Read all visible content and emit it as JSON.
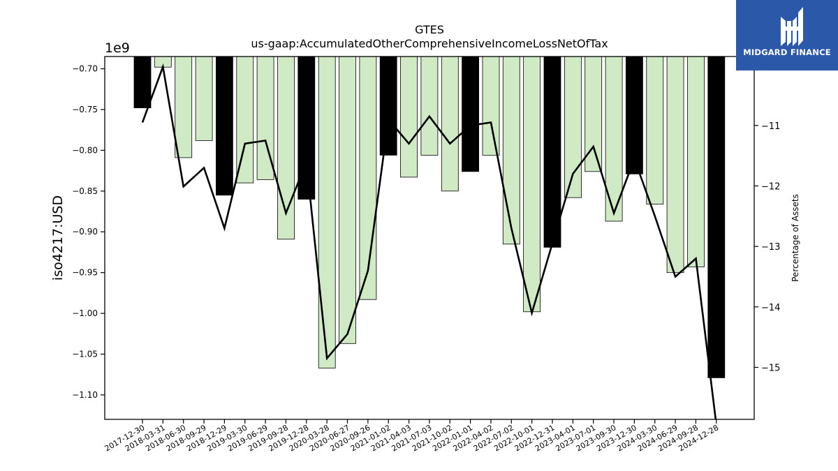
{
  "chart_data": {
    "type": "bar",
    "title": "GTES",
    "subtitle": "us-gaap:AccumulatedOtherComprehensiveIncomeLossNetOfTax",
    "ylabel": "iso4217:USD",
    "y2label": "Percentage of Assets",
    "y_offset_label": "1e9",
    "ylim": [
      -1.13,
      -0.685
    ],
    "y2lim": [
      -15.86,
      -9.86
    ],
    "yticks": [
      "−0.70",
      "−0.75",
      "−0.80",
      "−0.85",
      "−0.90",
      "−0.95",
      "−1.00",
      "−1.05",
      "−1.10"
    ],
    "y2ticks": [
      "−11",
      "−12",
      "−13",
      "−14",
      "−15"
    ],
    "categories": [
      "2017-12-30",
      "2018-03-31",
      "2018-06-30",
      "2018-09-29",
      "2018-12-29",
      "2019-03-30",
      "2019-06-29",
      "2019-09-28",
      "2019-12-28",
      "2020-03-28",
      "2020-06-27",
      "2020-09-26",
      "2021-01-02",
      "2021-04-03",
      "2021-07-03",
      "2021-10-02",
      "2022-01-01",
      "2022-04-02",
      "2022-07-02",
      "2022-10-01",
      "2022-12-31",
      "2023-04-01",
      "2023-07-01",
      "2023-09-30",
      "2023-12-30",
      "2024-03-30",
      "2024-06-29",
      "2024-09-28",
      "2024-12-28"
    ],
    "values": [
      -0.748,
      -0.698,
      -0.809,
      -0.788,
      -0.855,
      -0.84,
      -0.836,
      -0.909,
      -0.86,
      -1.067,
      -1.037,
      -0.983,
      -0.806,
      -0.833,
      -0.806,
      -0.85,
      -0.826,
      -0.806,
      -0.915,
      -0.998,
      -0.919,
      -0.858,
      -0.826,
      -0.887,
      -0.829,
      -0.866,
      -0.95,
      -0.943,
      -1.079
    ],
    "fiscal_year_end": [
      true,
      false,
      false,
      false,
      true,
      false,
      false,
      false,
      true,
      false,
      false,
      false,
      true,
      false,
      false,
      false,
      true,
      false,
      false,
      false,
      true,
      false,
      false,
      false,
      true,
      false,
      false,
      false,
      true
    ],
    "line_series": {
      "name": "Percentage of Assets",
      "values": [
        -10.95,
        -10.03,
        -12.01,
        -11.7,
        -12.7,
        -11.3,
        -11.25,
        -12.45,
        -11.6,
        -14.85,
        -14.45,
        -13.4,
        -10.9,
        -11.3,
        -10.85,
        -11.3,
        -11.0,
        -10.95,
        -12.7,
        -14.1,
        -12.95,
        -11.8,
        -11.35,
        -12.45,
        -11.55,
        -12.5,
        -13.5,
        -13.2,
        -15.95
      ]
    },
    "colors": {
      "fy_bar": "#000000",
      "q_bar": "#cfeac5",
      "bar_edge": "#000000",
      "line": "#000000"
    },
    "grid": false
  },
  "brand": {
    "name": "MIDGARD FINANCE"
  }
}
